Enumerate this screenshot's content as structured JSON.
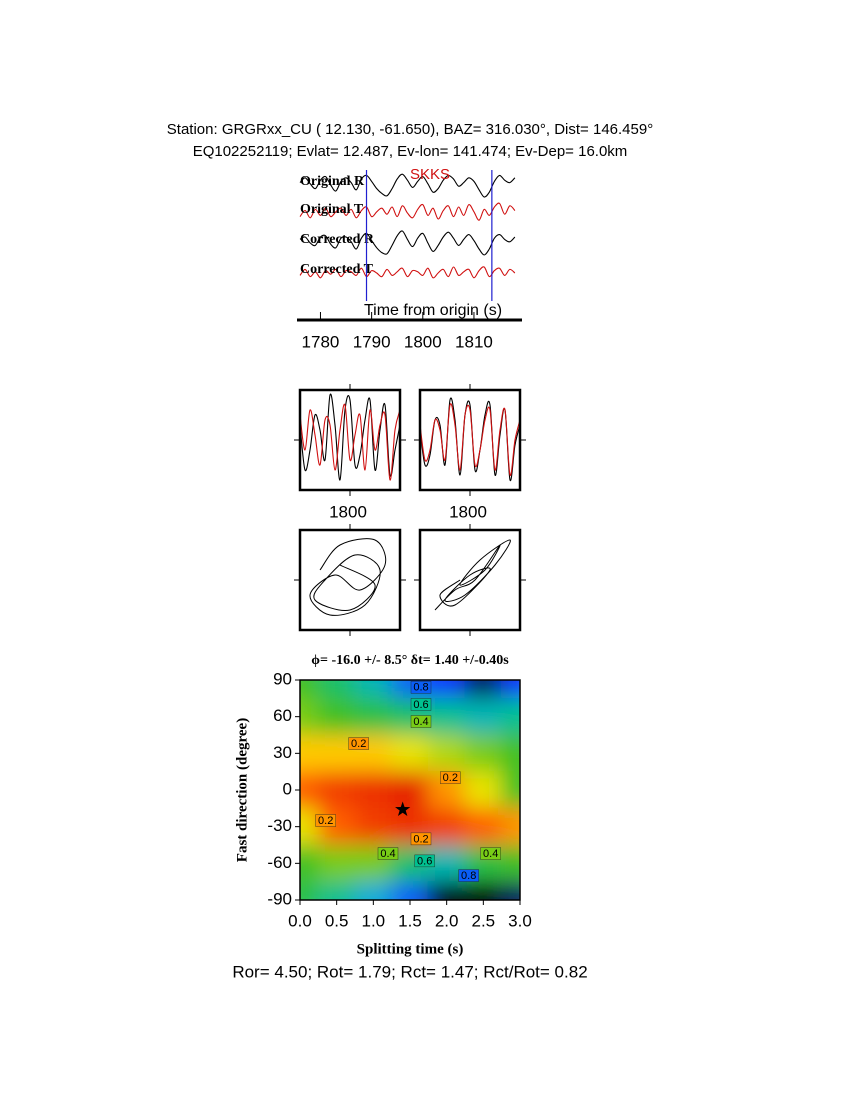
{
  "header": {
    "line1": "Station: GRGRxx_CU (  12.130,  -61.650), BAZ=  316.030°, Dist=  146.459°",
    "line2": "EQ102252119; Evlat=  12.487, Ev-lon= 141.474; Ev-Dep= 16.0km"
  },
  "chart_data": [
    {
      "type": "traces",
      "phase": "SKKS",
      "xlabel": "Time from origin (s)",
      "xlim": [
        1776,
        1819
      ],
      "xticks": [
        1780,
        1790,
        1800,
        1810
      ],
      "ylim": [
        -1,
        1
      ],
      "markers": [
        1789,
        1813.5
      ],
      "marker_color": "#2020d0",
      "x": [
        1776,
        1777,
        1778,
        1779,
        1780,
        1781,
        1782,
        1783,
        1784,
        1785,
        1786,
        1787,
        1788,
        1789,
        1790,
        1791,
        1792,
        1793,
        1794,
        1795,
        1796,
        1797,
        1798,
        1799,
        1800,
        1801,
        1802,
        1803,
        1804,
        1805,
        1806,
        1807,
        1808,
        1809,
        1810,
        1811,
        1812,
        1813,
        1814,
        1815,
        1816,
        1817,
        1818
      ],
      "series": [
        {
          "name": "Original R",
          "color": "#000000",
          "values": [
            0.2,
            0.6,
            0.1,
            -0.3,
            0.4,
            0.7,
            0.0,
            -0.5,
            0.3,
            0.6,
            0.2,
            -0.4,
            0.5,
            0.8,
            0.3,
            -0.3,
            -0.7,
            -0.9,
            -0.3,
            0.5,
            0.9,
            0.4,
            -0.2,
            0.3,
            0.7,
            0.1,
            -0.6,
            -0.3,
            0.4,
            0.8,
            0.5,
            -0.1,
            0.2,
            0.6,
            0.3,
            -0.4,
            -1.0,
            -0.6,
            0.3,
            0.8,
            0.4,
            0.2,
            0.6
          ]
        },
        {
          "name": "Original T",
          "color": "#d01010",
          "values": [
            -0.3,
            0.2,
            -0.4,
            0.3,
            -0.2,
            0.4,
            -0.3,
            0.1,
            0.4,
            -0.2,
            0.3,
            -0.4,
            0.2,
            0.5,
            -0.3,
            0.1,
            0.4,
            -0.1,
            0.5,
            -0.3,
            0.6,
            0.0,
            -0.4,
            0.3,
            0.7,
            -0.2,
            0.4,
            -0.5,
            0.2,
            0.6,
            -0.3,
            0.5,
            -0.2,
            0.7,
            0.1,
            -0.6,
            0.3,
            -0.2,
            0.5,
            0.8,
            -0.1,
            0.6,
            0.2
          ]
        },
        {
          "name": "Corrected R",
          "color": "#000000",
          "values": [
            0.3,
            0.5,
            0.0,
            -0.2,
            0.5,
            0.6,
            -0.1,
            -0.4,
            0.4,
            0.5,
            0.1,
            -0.5,
            0.4,
            0.8,
            0.2,
            -0.4,
            -0.8,
            -0.9,
            -0.2,
            0.6,
            1.0,
            0.3,
            -0.3,
            0.4,
            0.8,
            0.0,
            -0.7,
            -0.2,
            0.5,
            0.9,
            0.4,
            -0.2,
            0.3,
            0.7,
            0.2,
            -0.5,
            -1.0,
            -0.5,
            0.4,
            0.7,
            0.3,
            0.1,
            0.5
          ]
        },
        {
          "name": "Corrected T",
          "color": "#d01010",
          "values": [
            -0.2,
            0.3,
            -0.3,
            0.1,
            -0.4,
            0.2,
            -0.1,
            0.3,
            -0.3,
            0.2,
            0.1,
            -0.2,
            0.4,
            -0.3,
            0.2,
            0.0,
            -0.3,
            0.3,
            -0.2,
            0.1,
            0.4,
            -0.3,
            0.2,
            0.1,
            -0.2,
            0.4,
            -0.4,
            0.0,
            0.3,
            -0.3,
            0.5,
            -0.2,
            0.1,
            0.3,
            -0.4,
            0.2,
            0.5,
            -0.3,
            0.2,
            0.4,
            -0.2,
            0.3,
            0.0
          ]
        }
      ]
    },
    {
      "type": "window",
      "xlim": [
        1790,
        1810
      ],
      "xticks": [
        1800
      ],
      "ylim": [
        -1,
        1
      ],
      "x": [
        1790,
        1791,
        1792,
        1793,
        1794,
        1795,
        1796,
        1797,
        1798,
        1799,
        1800,
        1801,
        1802,
        1803,
        1804,
        1805,
        1806,
        1807,
        1808,
        1809,
        1810
      ],
      "series": [
        {
          "color": "#000000",
          "values": [
            0.3,
            -0.6,
            -0.2,
            0.5,
            0.2,
            -0.4,
            0.9,
            0.3,
            -0.8,
            0.6,
            0.8,
            -0.5,
            -0.3,
            0.4,
            0.8,
            -0.6,
            0.2,
            0.7,
            -0.7,
            -0.2,
            0.3
          ]
        },
        {
          "color": "#d01010",
          "values": [
            0.5,
            -0.2,
            0.6,
            0.1,
            -0.5,
            0.4,
            0.3,
            -0.6,
            0.2,
            0.7,
            -0.4,
            0.1,
            0.5,
            -0.6,
            0.6,
            -0.2,
            0.3,
            0.5,
            -0.8,
            0.2,
            0.6
          ]
        }
      ]
    },
    {
      "type": "window",
      "xlim": [
        1790,
        1810
      ],
      "xticks": [
        1800
      ],
      "ylim": [
        -1,
        1
      ],
      "x": [
        1790,
        1791,
        1792,
        1793,
        1794,
        1795,
        1796,
        1797,
        1798,
        1799,
        1800,
        1801,
        1802,
        1803,
        1804,
        1805,
        1806,
        1807,
        1808,
        1809,
        1810
      ],
      "series": [
        {
          "color": "#000000",
          "values": [
            0.2,
            -0.5,
            -0.3,
            0.4,
            0.3,
            -0.5,
            0.8,
            0.4,
            -0.7,
            0.5,
            0.7,
            -0.6,
            -0.2,
            0.5,
            0.7,
            -0.7,
            0.1,
            0.6,
            -0.8,
            -0.1,
            0.3
          ]
        },
        {
          "color": "#d01010",
          "values": [
            0.3,
            -0.4,
            -0.2,
            0.4,
            0.2,
            -0.4,
            0.7,
            0.3,
            -0.6,
            0.5,
            0.6,
            -0.5,
            -0.2,
            0.4,
            0.6,
            -0.6,
            0.2,
            0.6,
            -0.7,
            0.0,
            0.4
          ]
        }
      ]
    },
    {
      "type": "particle",
      "xlim": [
        -1,
        1
      ],
      "ylim": [
        -1,
        1
      ],
      "color": "#000000",
      "x": [
        -0.6,
        -0.2,
        0.5,
        0.7,
        0.2,
        -0.3,
        -0.8,
        -0.4,
        0.3,
        0.6,
        0.1,
        -0.5,
        -0.7,
        0.0,
        0.5,
        -0.2
      ],
      "values": [
        0.2,
        0.7,
        0.8,
        0.3,
        -0.2,
        0.1,
        -0.3,
        -0.7,
        -0.5,
        0.2,
        0.5,
        0.0,
        -0.4,
        -0.6,
        -0.1,
        0.3
      ]
    },
    {
      "type": "particle",
      "xlim": [
        -1,
        1
      ],
      "ylim": [
        -1,
        1
      ],
      "color": "#000000",
      "x": [
        -0.7,
        -0.3,
        0.1,
        0.6,
        0.3,
        -0.2,
        0.2,
        0.8,
        0.5,
        -0.1,
        -0.5,
        0.0,
        0.4,
        -0.3,
        -0.6,
        -0.2
      ],
      "values": [
        -0.6,
        -0.2,
        0.0,
        0.7,
        0.2,
        -0.1,
        0.4,
        0.8,
        0.3,
        -0.3,
        -0.4,
        0.1,
        0.2,
        -0.5,
        -0.3,
        0.0
      ]
    },
    {
      "type": "contour",
      "title": "ϕ= -16.0 +/- 8.5° δt= 1.40 +/-0.40s",
      "xlabel": "Splitting time (s)",
      "ylabel": "Fast direction (degree)",
      "xlim": [
        0,
        3
      ],
      "ylim": [
        -90,
        90
      ],
      "xticks": [
        {
          "value": 0,
          "label": "0.0"
        },
        0.5,
        {
          "value": 1,
          "label": "1.0"
        },
        1.5,
        {
          "value": 2,
          "label": "2.0"
        },
        2.5,
        {
          "value": 3,
          "label": "3.0"
        }
      ],
      "yticks": [
        90,
        60,
        30,
        0,
        -30,
        -60,
        -90
      ],
      "x": [
        0,
        0.5,
        1,
        1.5,
        2,
        2.5,
        3
      ],
      "y": [
        90,
        60,
        30,
        0,
        -30,
        -60,
        -90
      ],
      "z": [
        [
          0.45,
          0.55,
          0.65,
          0.8,
          0.85,
          0.9,
          0.85
        ],
        [
          0.4,
          0.45,
          0.5,
          0.55,
          0.6,
          0.65,
          0.6
        ],
        [
          0.25,
          0.25,
          0.25,
          0.3,
          0.35,
          0.4,
          0.45
        ],
        [
          0.15,
          0.1,
          0.08,
          0.05,
          0.2,
          0.3,
          0.45
        ],
        [
          0.3,
          0.15,
          0.1,
          0.08,
          0.1,
          0.15,
          0.2
        ],
        [
          0.45,
          0.4,
          0.4,
          0.55,
          0.65,
          0.5,
          0.45
        ],
        [
          0.5,
          0.6,
          0.7,
          0.8,
          0.95,
          0.95,
          0.9
        ]
      ],
      "colormap": [
        [
          0,
          "#d80000"
        ],
        [
          0.15,
          "#ff6000"
        ],
        [
          0.28,
          "#ffe800"
        ],
        [
          0.45,
          "#40c020"
        ],
        [
          0.6,
          "#00c090"
        ],
        [
          0.72,
          "#00a8e8"
        ],
        [
          0.85,
          "#1030ff"
        ],
        [
          0.93,
          "#000000"
        ]
      ],
      "contour_labels": [
        {
          "value": 0.8,
          "x": 1.65,
          "y": 84
        },
        {
          "value": 0.6,
          "x": 1.65,
          "y": 70
        },
        {
          "value": 0.4,
          "x": 1.65,
          "y": 56
        },
        {
          "value": 0.2,
          "x": 0.8,
          "y": 38
        },
        {
          "value": 0.2,
          "x": 2.05,
          "y": 10
        },
        {
          "value": 0.2,
          "x": 0.35,
          "y": -25
        },
        {
          "value": 0.2,
          "x": 1.65,
          "y": -40
        },
        {
          "value": 0.4,
          "x": 1.2,
          "y": -52
        },
        {
          "value": 0.6,
          "x": 1.7,
          "y": -58
        },
        {
          "value": 0.8,
          "x": 2.3,
          "y": -70
        },
        {
          "value": 0.4,
          "x": 2.6,
          "y": -52
        }
      ],
      "best": {
        "x": 1.4,
        "y": -16.0
      }
    }
  ],
  "footer": "Ror= 4.50; Rot= 1.79; Rct= 1.47; Rct/Rot= 0.82"
}
